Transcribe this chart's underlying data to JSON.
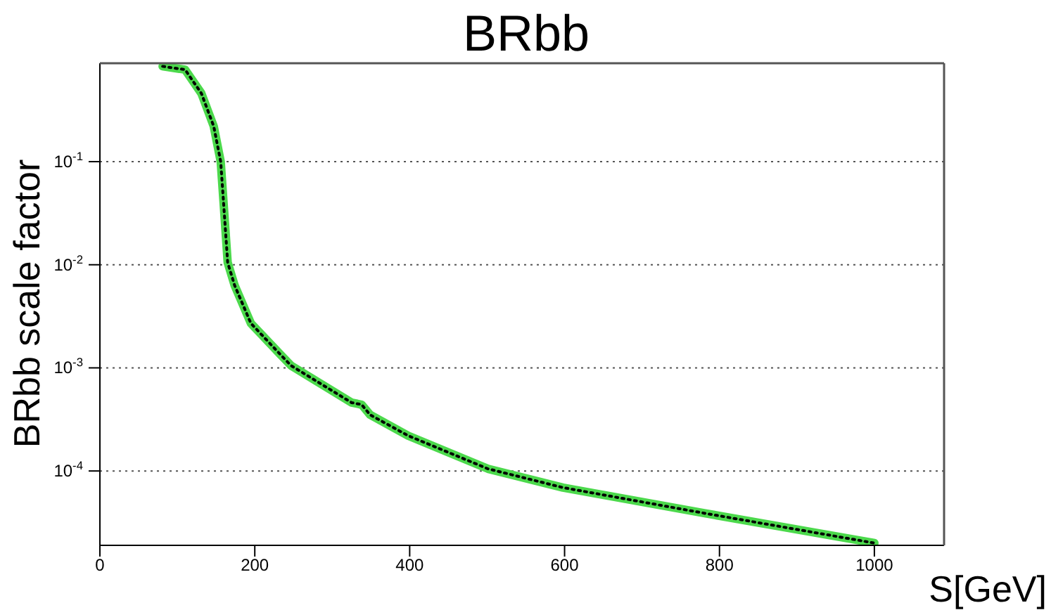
{
  "chart_data": {
    "type": "line",
    "title": "BRbb",
    "xlabel": "S[GeV]",
    "ylabel": "BRbb scale factor",
    "x": [
      81,
      110,
      131,
      147,
      156,
      160,
      165,
      174,
      195,
      235,
      247,
      325,
      338,
      349,
      398,
      501,
      598,
      780,
      1000
    ],
    "series": [
      {
        "color": "#4cd94c",
        "line_style": "solid",
        "values": [
          0.84,
          0.78,
          0.46,
          0.22,
          0.1,
          0.037,
          0.0105,
          0.0063,
          0.0027,
          0.0013,
          0.00105,
          0.00046,
          0.00044,
          0.00035,
          0.00022,
          0.000105,
          6.9e-05,
          3.9e-05,
          2e-05
        ]
      },
      {
        "color": "#000000",
        "line_style": "dotted",
        "values": [
          0.84,
          0.78,
          0.46,
          0.22,
          0.1,
          0.037,
          0.0105,
          0.0063,
          0.0027,
          0.0013,
          0.00105,
          0.00046,
          0.00044,
          0.00035,
          0.00022,
          0.000105,
          6.9e-05,
          3.9e-05,
          2e-05
        ]
      }
    ],
    "log": "y",
    "xlim": [
      0,
      1090
    ],
    "xticks": [
      0,
      200,
      400,
      600,
      800,
      1000
    ],
    "ylim": [
      1.9e-05,
      0.9
    ],
    "yticks": [
      {
        "value": 0.0001,
        "label": "10$^{-4}$"
      },
      {
        "value": 0.001,
        "label": "10$^{-3}$"
      },
      {
        "value": 0.01,
        "label": "10$^{-2}$"
      },
      {
        "value": 0.1,
        "label": "10$^{-1}$"
      }
    ],
    "grid": "y",
    "marker": "none"
  }
}
